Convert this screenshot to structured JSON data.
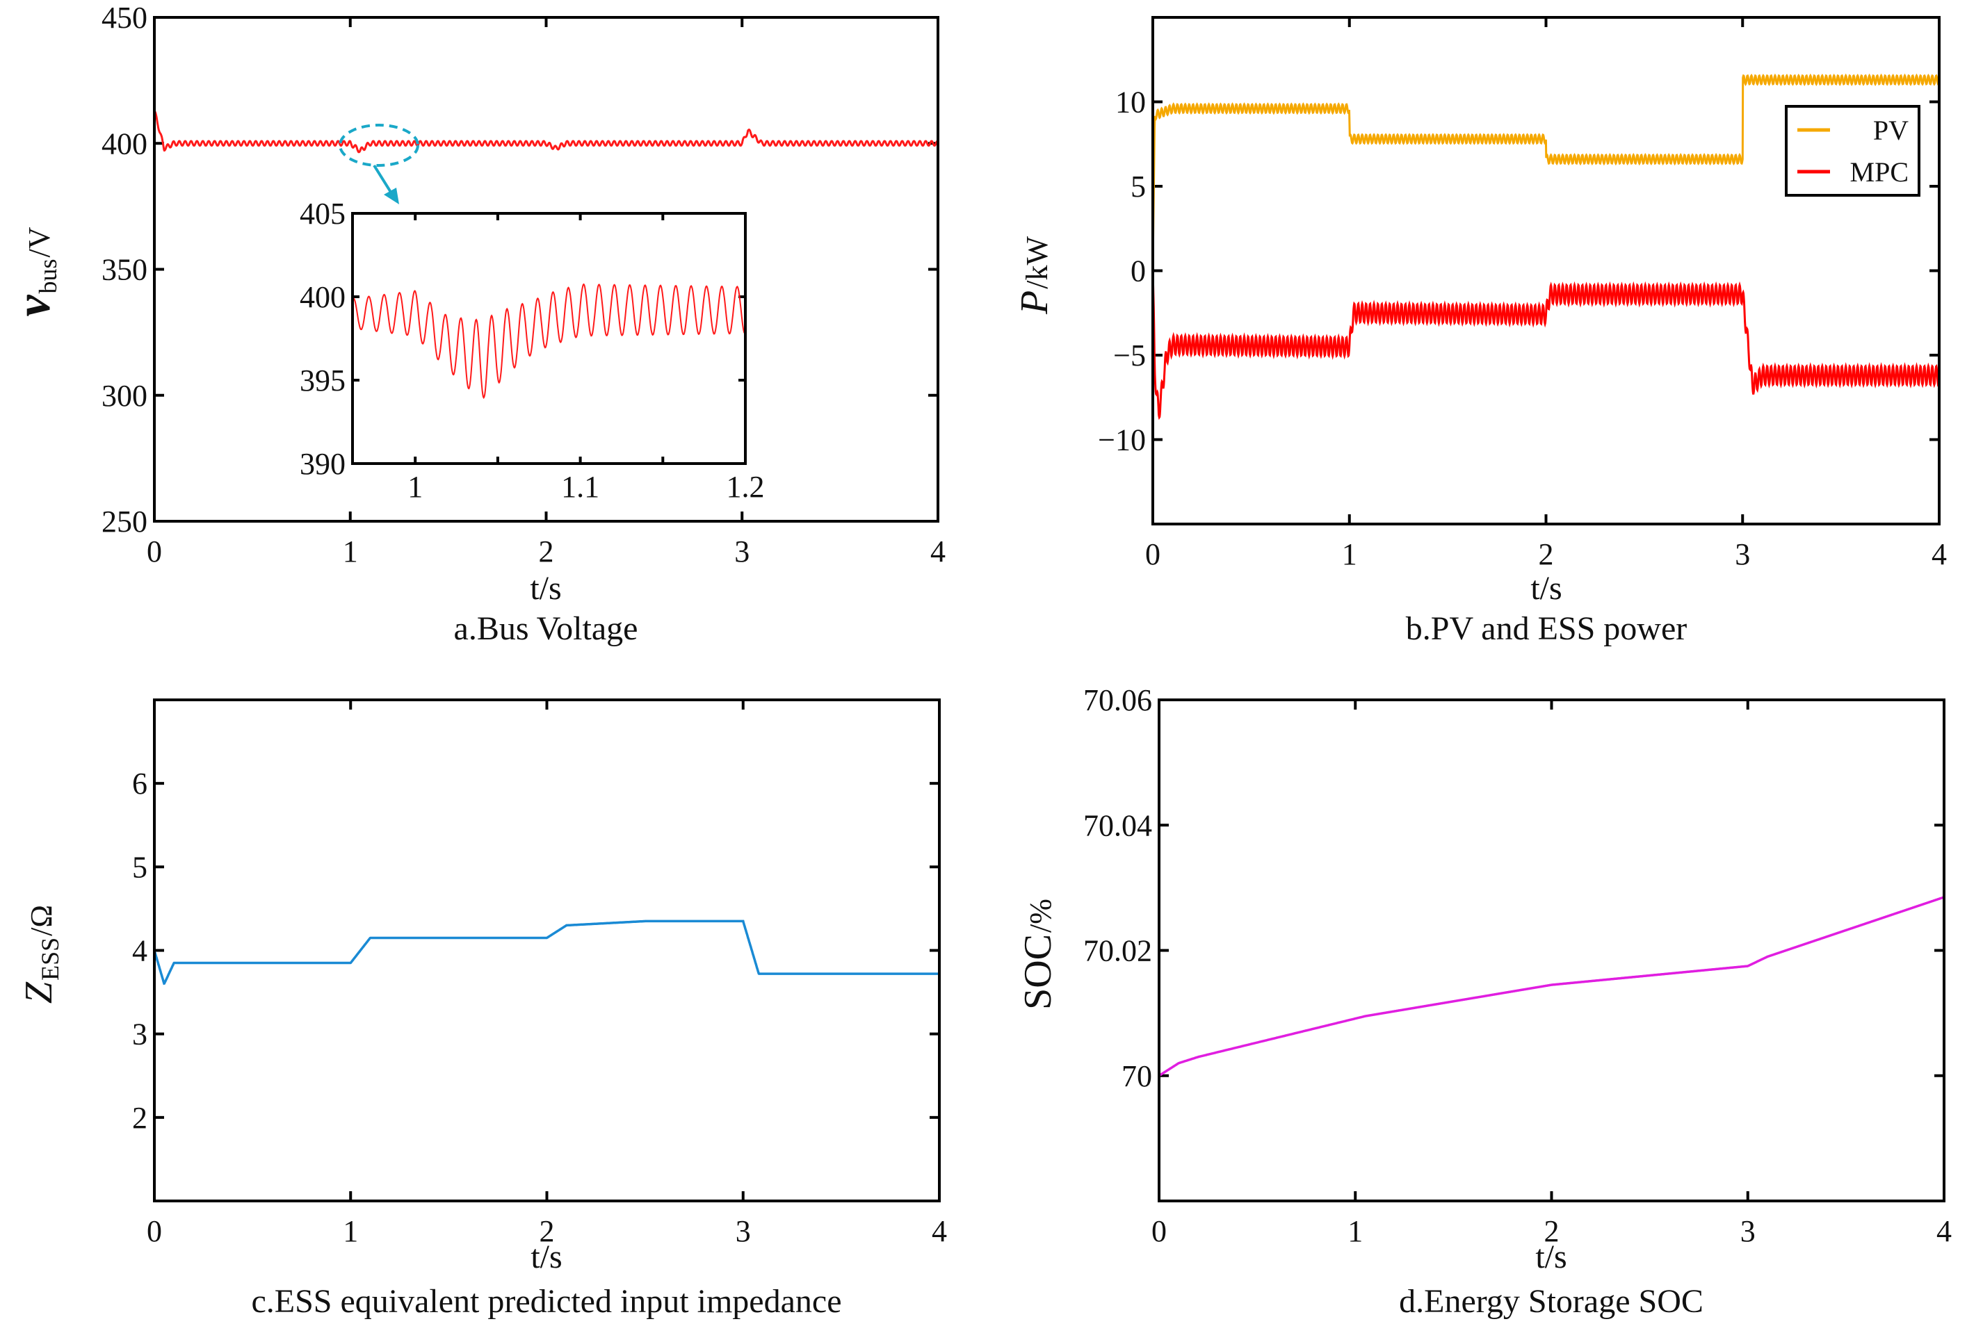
{
  "chart_data": [
    {
      "id": "a",
      "type": "line",
      "title": "a.Bus Voltage",
      "xlabel": "t/s",
      "ylabel_main": "v",
      "ylabel_sub": "bus",
      "ylabel_unit": "/V",
      "xlim": [
        0,
        4
      ],
      "ylim": [
        250,
        450
      ],
      "xticks": [
        0,
        1,
        2,
        3,
        4
      ],
      "xtick_labels": [
        "0",
        "1",
        "2",
        "3",
        "4"
      ],
      "yticks": [
        250,
        300,
        350,
        400,
        450
      ],
      "ytick_labels": [
        "250",
        "300",
        "350",
        "400",
        "450"
      ],
      "series": [
        {
          "name": "Vbus",
          "color": "#ff1a1a",
          "ripple": 0.9,
          "ripple_period": 0.03,
          "x": [
            0,
            0.05,
            0.1,
            1.0,
            1.05,
            1.1,
            2.0,
            2.05,
            2.1,
            3.0,
            3.03,
            3.1,
            4.0
          ],
          "y": [
            413,
            398,
            400,
            400,
            397,
            400,
            400,
            398,
            400,
            400,
            405,
            400,
            400
          ]
        }
      ],
      "inset": {
        "xlim": [
          0.962,
          1.2
        ],
        "ylim": [
          390,
          405
        ],
        "xticks": [
          1,
          1.1,
          1.2
        ],
        "xtick_labels": [
          "1",
          "1.1",
          "1.2"
        ],
        "minor_xticks": [
          1.05,
          1.15
        ],
        "yticks": [
          390,
          395,
          400,
          405
        ],
        "ytick_labels": [
          "390",
          "395",
          "400",
          "405"
        ],
        "color": "#ff1a1a",
        "ripple_period": 0.0093,
        "base_x": [
          0.962,
          1.0,
          1.02,
          1.04,
          1.06,
          1.08,
          1.1,
          1.2
        ],
        "base_y": [
          399,
          399,
          397.2,
          396.2,
          397.6,
          398.6,
          399.2,
          399.2
        ],
        "amp_x": [
          0.962,
          1.02,
          1.04,
          1.07,
          1.2
        ],
        "amp_y": [
          0.9,
          1.6,
          2.4,
          1.6,
          1.4
        ]
      }
    },
    {
      "id": "b",
      "type": "line",
      "title": "b.PV and ESS power",
      "xlabel": "t/s",
      "ylabel_main": "P",
      "ylabel_unit": "/kW",
      "xlim": [
        0,
        4
      ],
      "ylim": [
        -15,
        15
      ],
      "xticks": [
        0,
        1,
        2,
        3,
        4
      ],
      "xtick_labels": [
        "0",
        "1",
        "2",
        "3",
        "4"
      ],
      "yticks": [
        -10,
        -5,
        0,
        5,
        10
      ],
      "ytick_labels": [
        "−10",
        "−5",
        "0",
        "5",
        "10"
      ],
      "legend": "top-right",
      "series": [
        {
          "name": "PV",
          "color": "#f5a800",
          "ripple": 0.25,
          "ripple_period": 0.02,
          "x": [
            0,
            0.01,
            0.1,
            1.0,
            1.001,
            2.0,
            2.001,
            3.0,
            3.001,
            4.0
          ],
          "y": [
            0,
            9.2,
            9.6,
            9.6,
            7.8,
            7.8,
            6.6,
            6.6,
            11.3,
            11.3
          ]
        },
        {
          "name": "MPC",
          "color": "#ff0000",
          "ripple": 0.55,
          "ripple_period": 0.02,
          "x": [
            0,
            0.01,
            0.03,
            0.07,
            0.1,
            1.0,
            1.02,
            2.0,
            2.02,
            3.0,
            3.05,
            3.1,
            4.0
          ],
          "y": [
            0,
            -6,
            -8.5,
            -5,
            -4.4,
            -4.5,
            -2.5,
            -2.6,
            -1.4,
            -1.4,
            -6.8,
            -6.2,
            -6.2
          ]
        }
      ]
    },
    {
      "id": "c",
      "type": "line",
      "title": "c.ESS equivalent predicted input impedance",
      "xlabel": "t/s",
      "ylabel_main": "Z",
      "ylabel_sub": "ESS",
      "ylabel_unit": "/Ω",
      "xlim": [
        0,
        4
      ],
      "ylim": [
        1,
        7
      ],
      "xticks": [
        0,
        1,
        2,
        3,
        4
      ],
      "xtick_labels": [
        "0",
        "1",
        "2",
        "3",
        "4"
      ],
      "yticks": [
        2,
        3,
        4,
        5,
        6
      ],
      "ytick_labels": [
        "2",
        "3",
        "4",
        "5",
        "6"
      ],
      "series": [
        {
          "name": "Zess",
          "color": "#1a8ad4",
          "ripple": 0,
          "ripple_period": 1,
          "x": [
            0,
            0.05,
            0.1,
            1.0,
            1.1,
            2.0,
            2.1,
            2.5,
            3.0,
            3.08,
            4.0
          ],
          "y": [
            4.0,
            3.6,
            3.85,
            3.85,
            4.15,
            4.15,
            4.3,
            4.35,
            4.35,
            3.72,
            3.72
          ]
        }
      ]
    },
    {
      "id": "d",
      "type": "line",
      "title": "d.Energy Storage SOC",
      "xlabel": "t/s",
      "ylabel_main": "SOC",
      "ylabel_unit": "/%",
      "xlim": [
        0,
        4
      ],
      "ylim": [
        69.98,
        70.06
      ],
      "xticks": [
        0,
        1,
        2,
        3,
        4
      ],
      "xtick_labels": [
        "0",
        "1",
        "2",
        "3",
        "4"
      ],
      "yticks": [
        70,
        70.02,
        70.04,
        70.06
      ],
      "ytick_labels": [
        "70",
        "70.02",
        "70.04",
        "70.06"
      ],
      "series": [
        {
          "name": "SOC",
          "color": "#e01ee0",
          "ripple": 0,
          "ripple_period": 1,
          "x": [
            0,
            0.1,
            0.2,
            1.05,
            2.0,
            3.0,
            3.1,
            4.0
          ],
          "y": [
            70.0,
            70.002,
            70.003,
            70.0095,
            70.0145,
            70.0175,
            70.019,
            70.0285
          ]
        }
      ]
    }
  ]
}
